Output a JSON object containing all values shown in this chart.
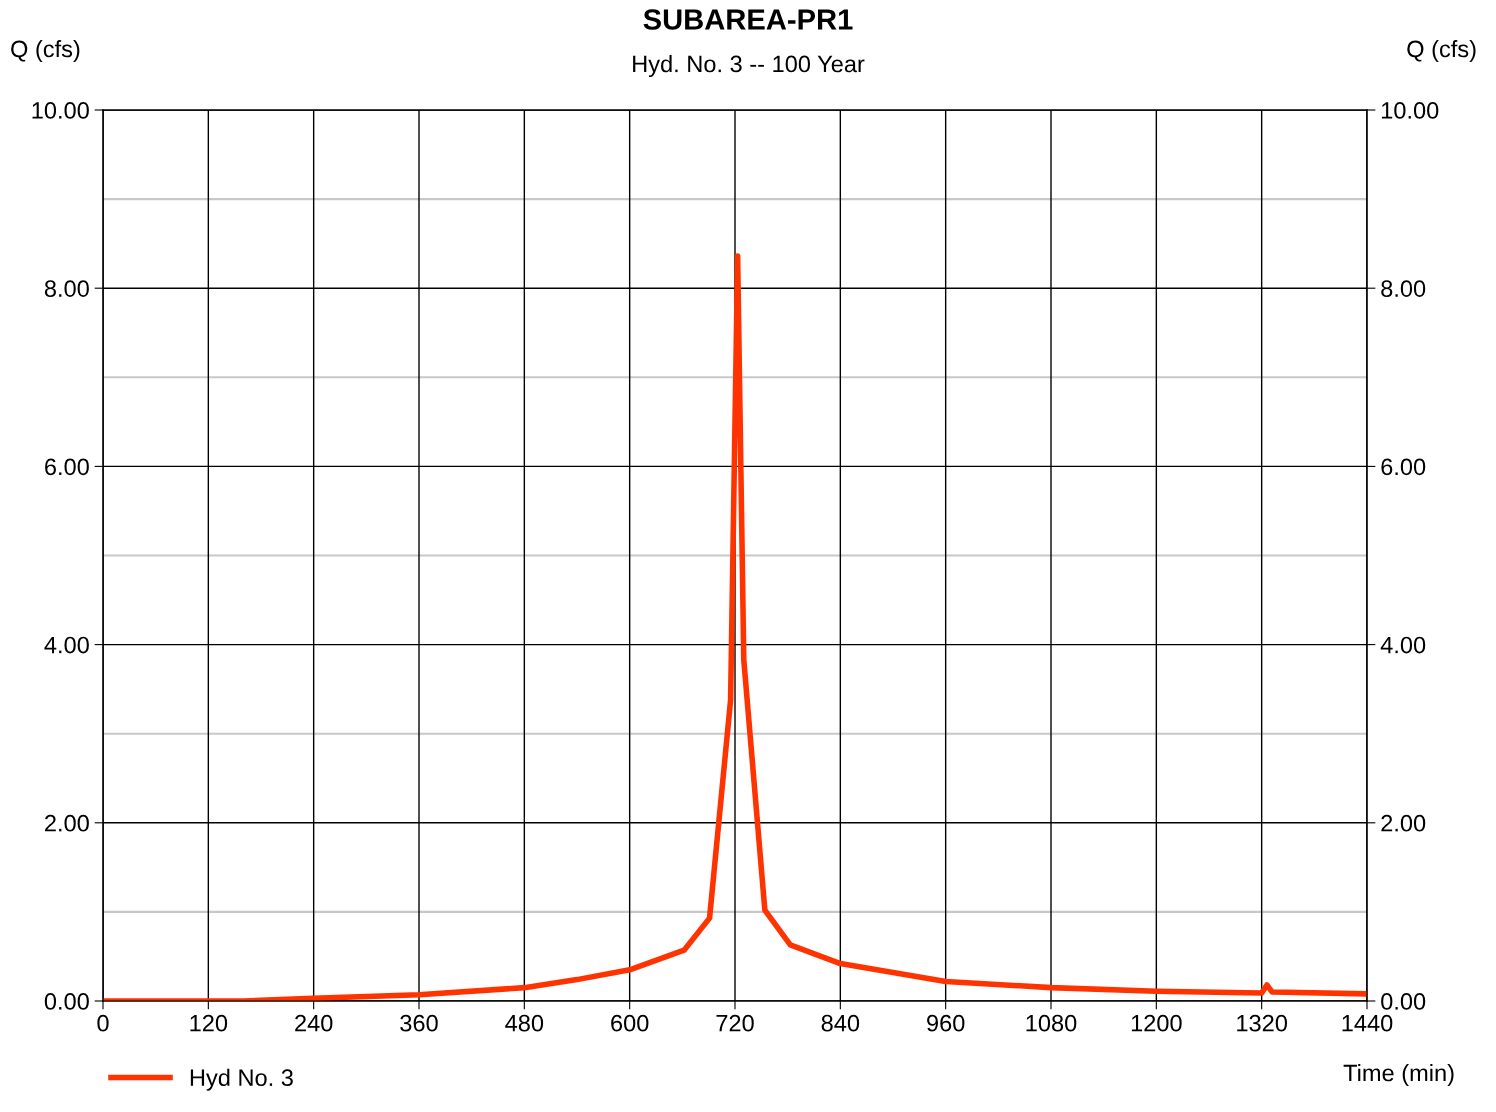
{
  "chart_data": {
    "type": "line",
    "title": "SUBAREA-PR1",
    "subtitle": "Hyd. No. 3 -- 100 Year",
    "xlabel": "Time (min)",
    "ylabel": "Q (cfs)",
    "y2label": "Q (cfs)",
    "x": [
      0,
      160,
      240,
      360,
      480,
      540,
      600,
      662,
      691,
      715,
      723,
      730,
      754,
      783,
      840,
      960,
      1080,
      1200,
      1320,
      1326,
      1332,
      1440
    ],
    "series": [
      {
        "name": "Hyd No. 3",
        "color": "#ff3300",
        "values": [
          0,
          0,
          0.03,
          0.07,
          0.15,
          0.24,
          0.35,
          0.57,
          0.93,
          3.38,
          8.36,
          3.83,
          1.02,
          0.63,
          0.42,
          0.22,
          0.15,
          0.11,
          0.09,
          0.18,
          0.1,
          0.08
        ]
      }
    ],
    "xlim": [
      0,
      1440
    ],
    "xticks": [
      0,
      120,
      240,
      360,
      480,
      600,
      720,
      840,
      960,
      1080,
      1200,
      1320,
      1440
    ],
    "ylim": [
      0,
      10
    ],
    "yticks": [
      {
        "value": 0,
        "label": "0.00"
      },
      {
        "value": 2,
        "label": "2.00"
      },
      {
        "value": 4,
        "label": "4.00"
      },
      {
        "value": 6,
        "label": "6.00"
      },
      {
        "value": 8,
        "label": "8.00"
      },
      {
        "value": 10,
        "label": "10.00"
      }
    ],
    "y2lim": [
      0,
      10
    ],
    "y2ticks": [
      {
        "value": 0,
        "label": "0.00"
      },
      {
        "value": 2,
        "label": "2.00"
      },
      {
        "value": 4,
        "label": "4.00"
      },
      {
        "value": 6,
        "label": "6.00"
      },
      {
        "value": 8,
        "label": "8.00"
      },
      {
        "value": 10,
        "label": "10.00"
      }
    ],
    "grid": true,
    "legend": "bottom left",
    "marker": "none",
    "line_style": "solid"
  }
}
